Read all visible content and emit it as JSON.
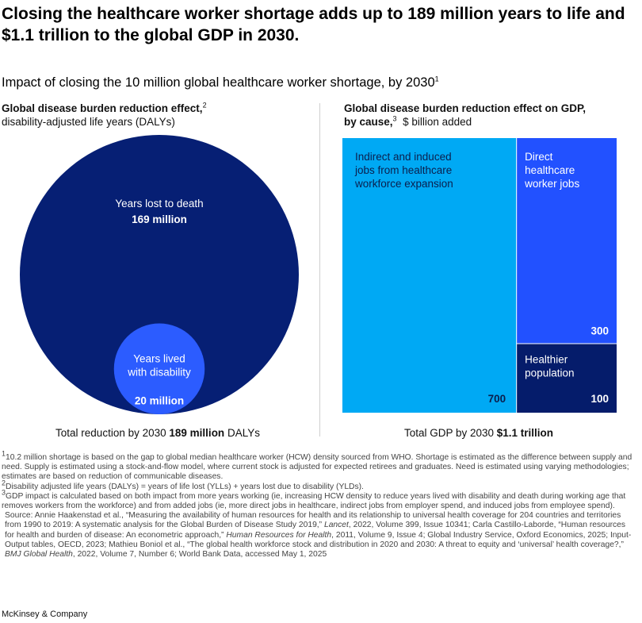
{
  "title": "Closing the healthcare worker shortage adds up to 189 million years to life and $1.1 trillion to the global GDP in 2030.",
  "subtitle": "Impact of closing the 10 million global healthcare worker shortage, by 2030",
  "subtitle_sup": "1",
  "left_panel": {
    "heading_bold": "Global disease burden reduction effect,",
    "heading_sup": "2",
    "heading_rest": "disability-adjusted life years (DALYs)",
    "total_prefix": "Total reduction by 2030",
    "total_value": "189 million",
    "total_suffix": "DALYs"
  },
  "right_panel": {
    "heading_bold": "Global disease burden reduction effect on GDP,",
    "heading_bold2": "by cause,",
    "heading_sup": "3",
    "heading_rest": "$ billion added",
    "total_prefix": "Total GDP by 2030",
    "total_value": "$1.1 trillion"
  },
  "chart_data": [
    {
      "type": "nested-circles",
      "items": [
        {
          "label_lines": [
            "Years lost to death"
          ],
          "value": 169,
          "value_label": "169 million",
          "color": "#061f74"
        },
        {
          "label_lines": [
            "Years lived",
            "with disability"
          ],
          "value": 20,
          "value_label": "20 million",
          "color": "#2c5cff"
        }
      ],
      "total": 189
    },
    {
      "type": "mekko",
      "items": [
        {
          "label_lines": [
            "Indirect and induced",
            "jobs from healthcare",
            "workforce expansion"
          ],
          "value": 700,
          "value_label": "700",
          "color": "#00a9f4",
          "text_color": "#0b1f4d"
        },
        {
          "label_lines": [
            "Direct",
            "healthcare",
            "worker jobs"
          ],
          "value": 300,
          "value_label": "300",
          "color": "#2251ff",
          "text_color": "#ffffff"
        },
        {
          "label_lines": [
            "Healthier",
            "population"
          ],
          "value": 100,
          "value_label": "100",
          "color": "#051c6b",
          "text_color": "#ffffff"
        }
      ]
    }
  ],
  "footnotes": {
    "f1": "10.2 million shortage is based on the gap to global median healthcare worker (HCW) density sourced from WHO. Shortage is estimated as the difference between supply and need. Supply is estimated using a stock-and-flow model, where current stock is adjusted for expected retirees and graduates. Need is estimated using varying methodologies; estimates are based on reduction of communicable diseases.",
    "f2": "Disability adjusted life years (DALYs) = years of life lost (YLLs) + years lost due to disability (YLDs).",
    "f3": "GDP impact is calculated based on both impact from more years working (ie, increasing HCW density to reduce years lived with disability and death during working age that removes workers from the workforce) and from added jobs (ie, more direct jobs in healthcare, indirect jobs from employer spend, and induced jobs from employee spend).",
    "source_a": "Source: Annie Haakenstad et al., “Measuring the availability of human resources for health and its relationship to universal health coverage for 204 countries and territories from 1990 to 2019: A systematic analysis for the Global Burden of Disease Study 2019,”",
    "source_b": "Lancet",
    "source_c": ", 2022, Volume 399, Issue 10341; Carla Castillo-Laborde, “Human resources for health and burden of disease: An econometric approach,”",
    "source_d": "Human Resources for Health",
    "source_e": ", 2011, Volume 9, Issue 4; Global Industry Service, Oxford Economics, 2025; Input-Output tables, OECD, 2023; Mathieu Boniol et al., “The global health workforce stock and distribution in 2020 and 2030: A threat to equity and ‘universal’ health coverage?,”",
    "source_f": "BMJ Global Health",
    "source_g": ", 2022, Volume 7, Number 6; World Bank Data, accessed May 1, 2025"
  },
  "brand": "McKinsey & Company"
}
